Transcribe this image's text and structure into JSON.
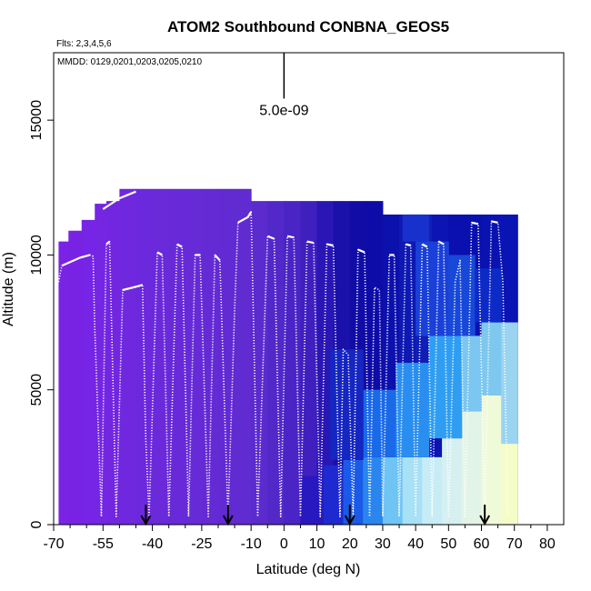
{
  "chart_data": {
    "type": "heatmap",
    "title": "ATOM2 Southbound CONBNA_GEOS5",
    "flights_note": "Flts: 2,3,4,5,6",
    "dates_note": "MMDD: 0129,0201,0203,0205,0210",
    "xlabel": "Latitude (deg N)",
    "ylabel": "Altitude (m)",
    "xlim": [
      -70,
      85
    ],
    "ylim": [
      0,
      17500
    ],
    "x_major_ticks": [
      -70,
      -55,
      -40,
      -25,
      -10,
      0,
      10,
      20,
      30,
      40,
      50,
      60,
      70,
      80
    ],
    "x_major_tick_labels": [
      "-70",
      "-55",
      "-40",
      "-25",
      "-10",
      "0",
      "10",
      "20",
      "30",
      "40",
      "50",
      "60",
      "70",
      "80"
    ],
    "x_minor_ticks": [
      -65,
      -60,
      -50,
      -45,
      -35,
      -30,
      -20,
      -15,
      -5,
      5,
      15,
      25,
      35,
      45,
      55,
      65,
      75
    ],
    "y_ticks": [
      0,
      5000,
      10000,
      15000
    ],
    "y_tick_labels": [
      "0",
      "5000",
      "10000",
      "15000"
    ],
    "scale_bar": {
      "label": "5.0e-09",
      "x": 0,
      "y_from": 15800,
      "y_to": 17500
    },
    "arrow_latitudes": [
      -42,
      -17,
      20,
      61
    ],
    "curtain_columns": [
      {
        "x0": -68.5,
        "x1": -65.5,
        "top": 10500,
        "color": "#7a22e6"
      },
      {
        "x0": -65.5,
        "x1": -61.5,
        "top": 10900,
        "color": "#7823e4"
      },
      {
        "x0": -61.5,
        "x1": -57.5,
        "top": 11300,
        "color": "#7624e6"
      },
      {
        "x0": -57.5,
        "x1": -54,
        "top": 11900,
        "color": "#7426e2"
      },
      {
        "x0": -54,
        "x1": -50,
        "top": 12000,
        "color": "#7226e0"
      },
      {
        "x0": -50,
        "x1": -45,
        "top": 12450,
        "color": "#7028df"
      },
      {
        "x0": -45,
        "x1": -40,
        "top": 12450,
        "color": "#6c28dc"
      },
      {
        "x0": -40,
        "x1": -35,
        "top": 12450,
        "color": "#6a2ada"
      },
      {
        "x0": -35,
        "x1": -30,
        "top": 12450,
        "color": "#682ad8"
      },
      {
        "x0": -30,
        "x1": -25,
        "top": 12450,
        "color": "#662bd6"
      },
      {
        "x0": -25,
        "x1": -20,
        "top": 12450,
        "color": "#642bd4"
      },
      {
        "x0": -20,
        "x1": -15,
        "top": 12450,
        "color": "#622ad2"
      },
      {
        "x0": -15,
        "x1": -10,
        "top": 12450,
        "color": "#602bd0"
      },
      {
        "x0": -10,
        "x1": -5,
        "top": 12000,
        "color": "#5b2bcd"
      },
      {
        "x0": -5,
        "x1": 0,
        "top": 12000,
        "color": "#5228c8"
      },
      {
        "x0": 0,
        "x1": 5,
        "top": 12000,
        "color": "#4a24c4"
      },
      {
        "x0": 5,
        "x1": 10,
        "top": 12000,
        "color": "#3f1fbe"
      },
      {
        "x0": 10,
        "x1": 15,
        "top": 12000,
        "color": "#2a16b4"
      },
      {
        "x0": 15,
        "x1": 20,
        "top": 12000,
        "color": "#1a10aa"
      },
      {
        "x0": 20,
        "x1": 25,
        "top": 12000,
        "color": "#120ca6"
      },
      {
        "x0": 25,
        "x1": 30,
        "top": 12000,
        "color": "#0e0ca8"
      },
      {
        "x0": 30,
        "x1": 35,
        "top": 11500,
        "color": "#0c10ac"
      },
      {
        "x0": 35,
        "x1": 40,
        "top": 11500,
        "color": "#0e18b2"
      },
      {
        "x0": 40,
        "x1": 45,
        "top": 11500,
        "color": "#101eb6"
      },
      {
        "x0": 45,
        "x1": 50,
        "top": 11500,
        "color": "#0c14b2"
      },
      {
        "x0": 50,
        "x1": 55,
        "top": 11500,
        "color": "#0a10ae"
      },
      {
        "x0": 55,
        "x1": 60,
        "top": 11500,
        "color": "#0a10ae"
      },
      {
        "x0": 60,
        "x1": 65,
        "top": 11500,
        "color": "#0a12b0"
      },
      {
        "x0": 65,
        "x1": 71,
        "top": 11500,
        "color": "#0a14b4"
      }
    ],
    "curtain_patches": [
      {
        "x0": 5,
        "x1": 12,
        "y0": 0,
        "y1": 1800,
        "color": "#2818c0"
      },
      {
        "x0": 12,
        "x1": 18,
        "y0": 0,
        "y1": 2200,
        "color": "#1e2ad0"
      },
      {
        "x0": 18,
        "x1": 24,
        "y0": 0,
        "y1": 2400,
        "color": "#1a5ae6"
      },
      {
        "x0": 24,
        "x1": 30,
        "y0": 0,
        "y1": 2500,
        "color": "#2a86ee"
      },
      {
        "x0": 30,
        "x1": 36,
        "y0": 0,
        "y1": 2500,
        "color": "#6fc4f4"
      },
      {
        "x0": 36,
        "x1": 42,
        "y0": 0,
        "y1": 2500,
        "color": "#a8e0f6"
      },
      {
        "x0": 42,
        "x1": 48,
        "y0": 0,
        "y1": 2500,
        "color": "#c8ecf6"
      },
      {
        "x0": 48,
        "x1": 54,
        "y0": 0,
        "y1": 3200,
        "color": "#d6f0f2"
      },
      {
        "x0": 54,
        "x1": 60,
        "y0": 0,
        "y1": 4200,
        "color": "#e2f4e6"
      },
      {
        "x0": 60,
        "x1": 66,
        "y0": 0,
        "y1": 4800,
        "color": "#eefad8"
      },
      {
        "x0": 66,
        "x1": 71,
        "y0": 0,
        "y1": 3000,
        "color": "#f6fcc8"
      },
      {
        "x0": 24,
        "x1": 34,
        "y0": 2500,
        "y1": 5000,
        "color": "#1a6ae8"
      },
      {
        "x0": 34,
        "x1": 44,
        "y0": 2500,
        "y1": 6000,
        "color": "#2a8ef0"
      },
      {
        "x0": 44,
        "x1": 54,
        "y0": 3200,
        "y1": 7000,
        "color": "#2f9ef2"
      },
      {
        "x0": 54,
        "x1": 60,
        "y0": 4200,
        "y1": 7000,
        "color": "#7cc6f2"
      },
      {
        "x0": 60,
        "x1": 66,
        "y0": 4800,
        "y1": 7500,
        "color": "#7ec8f0"
      },
      {
        "x0": 66,
        "x1": 71,
        "y0": 3000,
        "y1": 7500,
        "color": "#9ad4f0"
      },
      {
        "x0": 40,
        "x1": 50,
        "y0": 7000,
        "y1": 10500,
        "color": "#1a40d8"
      },
      {
        "x0": 50,
        "x1": 58,
        "y0": 7000,
        "y1": 10000,
        "color": "#1848d8"
      },
      {
        "x0": 58,
        "x1": 66,
        "y0": 7500,
        "y1": 9500,
        "color": "#0e2ac6"
      },
      {
        "x0": 14,
        "x1": 24,
        "y0": 2400,
        "y1": 6500,
        "color": "#1626c0"
      },
      {
        "x0": 36,
        "x1": 44,
        "y0": 10500,
        "y1": 11500,
        "color": "#1830cc"
      }
    ]
  }
}
